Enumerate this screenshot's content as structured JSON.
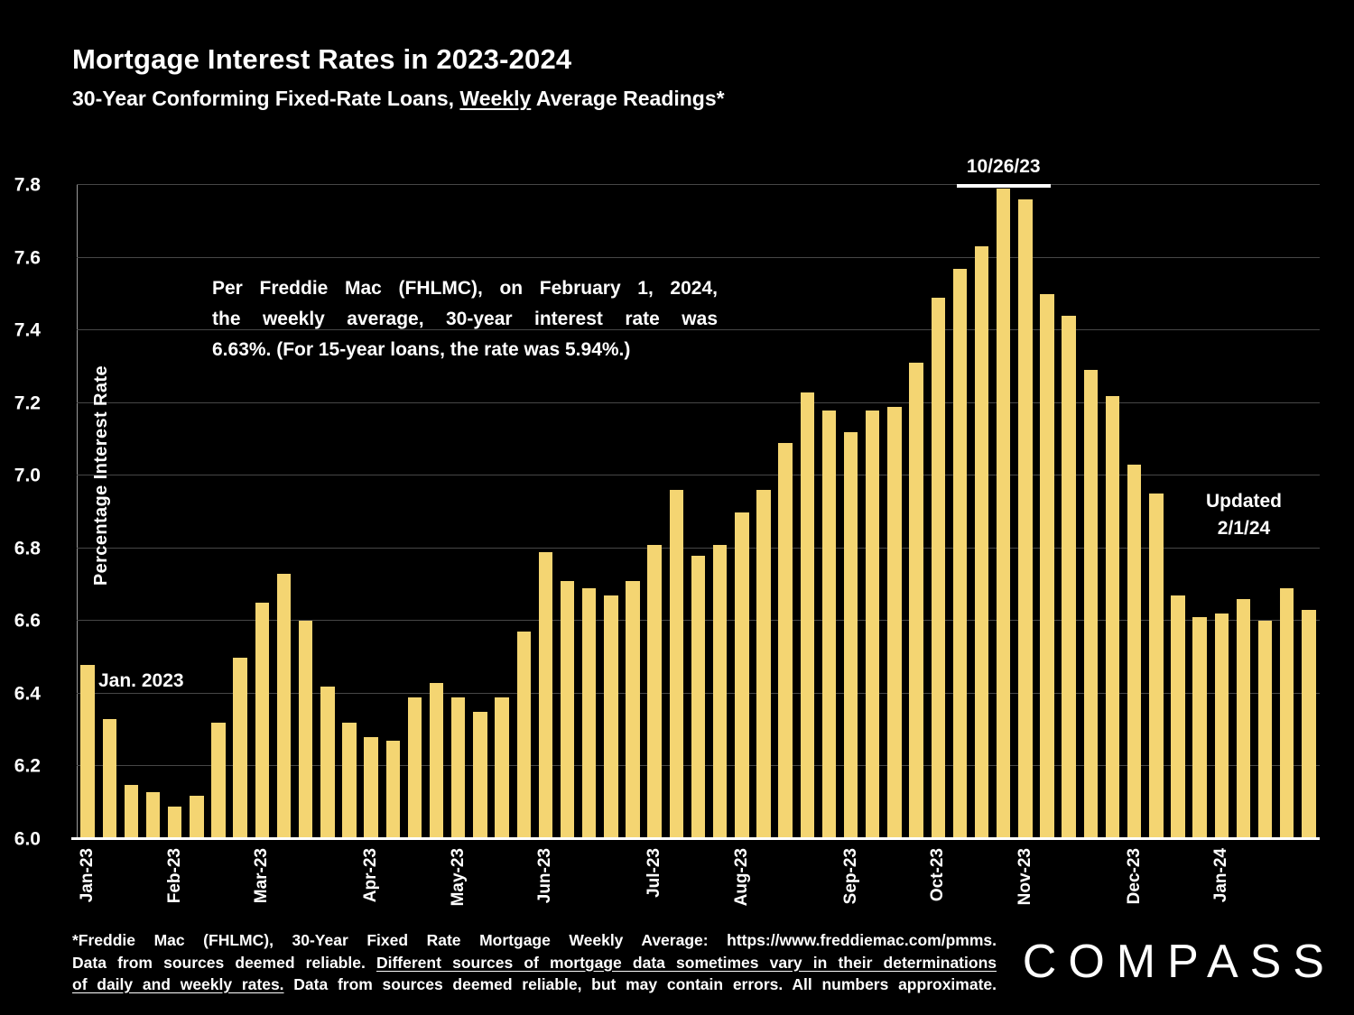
{
  "title": "Mortgage Interest Rates in 2023-2024",
  "subtitle": {
    "part1": "30-Year Conforming Fixed-Rate Loans, ",
    "underlined": "Weekly",
    "part2": " Average Readings*"
  },
  "annotations": {
    "peak_label": "10/26/23",
    "start_label": "Jan. 2023",
    "updated_line1": "Updated",
    "updated_line2": "2/1/24",
    "note_lines": [
      "Per Freddie Mac (FHLMC), on February 1, 2024,",
      "the weekly average, 30-year interest rate was",
      "6.63%. (For 15-year loans, the rate was 5.94%.)"
    ]
  },
  "footer": {
    "line1": "*Freddie Mac (FHLMC), 30-Year Fixed Rate Mortgage Weekly Average: https://www.freddiemac.com/pmms.",
    "line2_plain": "Data from sources deemed reliable. ",
    "line2_underlined": "Different sources of mortgage data sometimes vary in their determinations",
    "line3_underlined": "of daily and weekly rates.",
    "line3_plain": " Data from sources deemed reliable, but may contain errors. All numbers approximate."
  },
  "logo": "COMPASS",
  "colors": {
    "bar": "#F4D572",
    "background": "#000000",
    "text": "#FFFFFF",
    "gridline": "#474747"
  },
  "chart_data": {
    "type": "bar",
    "title": "Mortgage Interest Rates in 2023-2024",
    "subtitle": "30-Year Conforming Fixed-Rate Loans, Weekly Average Readings*",
    "xlabel": "",
    "ylabel": "Percentage Interest  Rate",
    "ylim": [
      6.0,
      7.8
    ],
    "yticks": [
      6.0,
      6.2,
      6.4,
      6.6,
      6.8,
      7.0,
      7.2,
      7.4,
      7.6,
      7.8
    ],
    "grid": true,
    "legend": false,
    "x_tick_labels": [
      "Jan-23",
      "Feb-23",
      "Mar-23",
      "Apr-23",
      "May-23",
      "Jun-23",
      "Jul-23",
      "Aug-23",
      "Sep-23",
      "Oct-23",
      "Nov-23",
      "Dec-23",
      "Jan-24"
    ],
    "x_tick_positions": [
      0,
      4,
      8,
      13,
      17,
      21,
      26,
      30,
      35,
      39,
      43,
      48,
      52
    ],
    "values": [
      6.48,
      6.33,
      6.15,
      6.13,
      6.09,
      6.12,
      6.32,
      6.5,
      6.65,
      6.73,
      6.6,
      6.42,
      6.32,
      6.28,
      6.27,
      6.39,
      6.43,
      6.39,
      6.35,
      6.39,
      6.57,
      6.79,
      6.71,
      6.69,
      6.67,
      6.71,
      6.81,
      6.96,
      6.78,
      6.81,
      6.9,
      6.96,
      7.09,
      7.23,
      7.18,
      7.12,
      7.18,
      7.19,
      7.31,
      7.49,
      7.57,
      7.63,
      7.79,
      7.76,
      7.5,
      7.44,
      7.29,
      7.22,
      7.03,
      6.95,
      6.67,
      6.61,
      6.62,
      6.66,
      6.6,
      6.69,
      6.63
    ],
    "peak_index": 42,
    "peak_value": 7.79
  }
}
